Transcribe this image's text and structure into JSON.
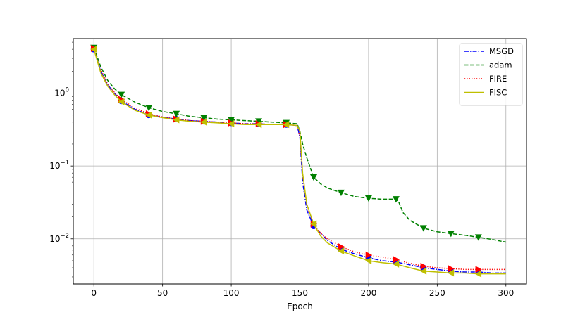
{
  "chart_data": {
    "type": "line",
    "xlabel": "Epoch",
    "ylabel": "",
    "xlim": [
      -15,
      315
    ],
    "ylim": [
      0.0024,
      5.6
    ],
    "yscale": "log",
    "grid": true,
    "legend_position": "top-right",
    "x_ticks": [
      0,
      50,
      100,
      150,
      200,
      250,
      300
    ],
    "x_tick_labels": [
      "0",
      "50",
      "100",
      "150",
      "200",
      "250",
      "300"
    ],
    "y_ticks": [
      1,
      0.1,
      0.01
    ],
    "y_tick_bases": [
      "10",
      "10",
      "10"
    ],
    "y_tick_exps": [
      "0",
      "−1",
      "−2"
    ],
    "series": [
      {
        "name": "MSGD",
        "color": "#0000ff",
        "dash": "dashdot",
        "marker": "circle",
        "points": [
          [
            0,
            4.0
          ],
          [
            5,
            2.0
          ],
          [
            10,
            1.3
          ],
          [
            15,
            1.0
          ],
          [
            20,
            0.78
          ],
          [
            30,
            0.6
          ],
          [
            40,
            0.5
          ],
          [
            50,
            0.47
          ],
          [
            60,
            0.44
          ],
          [
            70,
            0.42
          ],
          [
            80,
            0.41
          ],
          [
            90,
            0.4
          ],
          [
            100,
            0.39
          ],
          [
            110,
            0.38
          ],
          [
            120,
            0.38
          ],
          [
            130,
            0.37
          ],
          [
            140,
            0.37
          ],
          [
            148,
            0.36
          ],
          [
            150,
            0.25
          ],
          [
            152,
            0.06
          ],
          [
            155,
            0.025
          ],
          [
            160,
            0.015
          ],
          [
            165,
            0.012
          ],
          [
            170,
            0.0095
          ],
          [
            180,
            0.0072
          ],
          [
            190,
            0.0062
          ],
          [
            200,
            0.0055
          ],
          [
            210,
            0.005
          ],
          [
            220,
            0.0048
          ],
          [
            230,
            0.0044
          ],
          [
            240,
            0.004
          ],
          [
            250,
            0.0038
          ],
          [
            260,
            0.0036
          ],
          [
            270,
            0.0035
          ],
          [
            280,
            0.0035
          ],
          [
            290,
            0.0034
          ],
          [
            300,
            0.0034
          ]
        ],
        "markers": [
          [
            0,
            4.0
          ],
          [
            20,
            0.78
          ],
          [
            40,
            0.5
          ],
          [
            60,
            0.44
          ],
          [
            80,
            0.41
          ],
          [
            100,
            0.39
          ],
          [
            120,
            0.38
          ],
          [
            140,
            0.37
          ],
          [
            160,
            0.015
          ],
          [
            180,
            0.0072
          ],
          [
            200,
            0.0055
          ],
          [
            220,
            0.0048
          ],
          [
            240,
            0.004
          ],
          [
            260,
            0.0036
          ],
          [
            280,
            0.0035
          ]
        ]
      },
      {
        "name": "adam",
        "color": "#008000",
        "dash": "dashed",
        "marker": "triangle-down",
        "points": [
          [
            0,
            4.2
          ],
          [
            5,
            2.3
          ],
          [
            10,
            1.5
          ],
          [
            15,
            1.15
          ],
          [
            20,
            0.95
          ],
          [
            30,
            0.75
          ],
          [
            40,
            0.63
          ],
          [
            50,
            0.56
          ],
          [
            60,
            0.52
          ],
          [
            70,
            0.48
          ],
          [
            80,
            0.46
          ],
          [
            90,
            0.44
          ],
          [
            100,
            0.43
          ],
          [
            110,
            0.42
          ],
          [
            120,
            0.41
          ],
          [
            130,
            0.4
          ],
          [
            140,
            0.39
          ],
          [
            148,
            0.38
          ],
          [
            150,
            0.3
          ],
          [
            152,
            0.2
          ],
          [
            155,
            0.13
          ],
          [
            160,
            0.07
          ],
          [
            165,
            0.057
          ],
          [
            170,
            0.05
          ],
          [
            180,
            0.043
          ],
          [
            190,
            0.038
          ],
          [
            200,
            0.036
          ],
          [
            210,
            0.035
          ],
          [
            220,
            0.035
          ],
          [
            222,
            0.032
          ],
          [
            225,
            0.023
          ],
          [
            230,
            0.018
          ],
          [
            240,
            0.014
          ],
          [
            250,
            0.0125
          ],
          [
            260,
            0.0118
          ],
          [
            270,
            0.0112
          ],
          [
            280,
            0.0105
          ],
          [
            290,
            0.0098
          ],
          [
            300,
            0.009
          ]
        ],
        "markers": [
          [
            0,
            4.2
          ],
          [
            20,
            0.95
          ],
          [
            40,
            0.63
          ],
          [
            60,
            0.52
          ],
          [
            80,
            0.46
          ],
          [
            100,
            0.43
          ],
          [
            120,
            0.41
          ],
          [
            140,
            0.39
          ],
          [
            160,
            0.07
          ],
          [
            180,
            0.043
          ],
          [
            200,
            0.036
          ],
          [
            220,
            0.035
          ],
          [
            240,
            0.014
          ],
          [
            260,
            0.0118
          ],
          [
            280,
            0.0105
          ]
        ]
      },
      {
        "name": "FIRE",
        "color": "#ff0000",
        "dash": "dotted",
        "marker": "triangle-right",
        "points": [
          [
            0,
            4.1
          ],
          [
            5,
            2.1
          ],
          [
            10,
            1.35
          ],
          [
            15,
            1.02
          ],
          [
            20,
            0.82
          ],
          [
            30,
            0.62
          ],
          [
            40,
            0.52
          ],
          [
            50,
            0.47
          ],
          [
            60,
            0.44
          ],
          [
            70,
            0.42
          ],
          [
            80,
            0.41
          ],
          [
            90,
            0.4
          ],
          [
            100,
            0.39
          ],
          [
            110,
            0.38
          ],
          [
            120,
            0.38
          ],
          [
            130,
            0.37
          ],
          [
            140,
            0.37
          ],
          [
            148,
            0.36
          ],
          [
            150,
            0.25
          ],
          [
            152,
            0.07
          ],
          [
            155,
            0.028
          ],
          [
            160,
            0.016
          ],
          [
            165,
            0.012
          ],
          [
            170,
            0.01
          ],
          [
            180,
            0.0078
          ],
          [
            190,
            0.0066
          ],
          [
            200,
            0.006
          ],
          [
            210,
            0.0056
          ],
          [
            220,
            0.0052
          ],
          [
            230,
            0.0046
          ],
          [
            240,
            0.0042
          ],
          [
            250,
            0.004
          ],
          [
            260,
            0.0039
          ],
          [
            270,
            0.0038
          ],
          [
            280,
            0.0038
          ],
          [
            290,
            0.0038
          ],
          [
            300,
            0.0038
          ]
        ],
        "markers": [
          [
            0,
            4.1
          ],
          [
            20,
            0.82
          ],
          [
            40,
            0.52
          ],
          [
            60,
            0.44
          ],
          [
            80,
            0.41
          ],
          [
            100,
            0.39
          ],
          [
            120,
            0.38
          ],
          [
            140,
            0.37
          ],
          [
            160,
            0.016
          ],
          [
            180,
            0.0078
          ],
          [
            200,
            0.006
          ],
          [
            220,
            0.0052
          ],
          [
            240,
            0.0042
          ],
          [
            260,
            0.0039
          ],
          [
            280,
            0.0038
          ]
        ]
      },
      {
        "name": "FISC",
        "color": "#bfbf00",
        "dash": "solid",
        "marker": "triangle-left",
        "points": [
          [
            0,
            4.0
          ],
          [
            5,
            1.9
          ],
          [
            10,
            1.25
          ],
          [
            15,
            0.95
          ],
          [
            20,
            0.76
          ],
          [
            30,
            0.58
          ],
          [
            40,
            0.5
          ],
          [
            50,
            0.46
          ],
          [
            60,
            0.43
          ],
          [
            70,
            0.41
          ],
          [
            80,
            0.4
          ],
          [
            90,
            0.39
          ],
          [
            100,
            0.38
          ],
          [
            110,
            0.37
          ],
          [
            120,
            0.37
          ],
          [
            130,
            0.37
          ],
          [
            140,
            0.37
          ],
          [
            148,
            0.36
          ],
          [
            150,
            0.3
          ],
          [
            152,
            0.08
          ],
          [
            155,
            0.03
          ],
          [
            160,
            0.016
          ],
          [
            165,
            0.011
          ],
          [
            170,
            0.0088
          ],
          [
            180,
            0.0068
          ],
          [
            190,
            0.0058
          ],
          [
            200,
            0.005
          ],
          [
            210,
            0.0047
          ],
          [
            220,
            0.0045
          ],
          [
            230,
            0.004
          ],
          [
            240,
            0.0036
          ],
          [
            250,
            0.0035
          ],
          [
            260,
            0.0034
          ],
          [
            270,
            0.0034
          ],
          [
            280,
            0.0033
          ],
          [
            290,
            0.0033
          ],
          [
            300,
            0.0033
          ]
        ],
        "markers": [
          [
            0,
            4.0
          ],
          [
            20,
            0.76
          ],
          [
            40,
            0.5
          ],
          [
            60,
            0.43
          ],
          [
            80,
            0.4
          ],
          [
            100,
            0.38
          ],
          [
            120,
            0.37
          ],
          [
            140,
            0.37
          ],
          [
            160,
            0.016
          ],
          [
            180,
            0.0068
          ],
          [
            200,
            0.005
          ],
          [
            220,
            0.0045
          ],
          [
            240,
            0.0036
          ],
          [
            260,
            0.0034
          ],
          [
            280,
            0.0033
          ]
        ]
      }
    ]
  }
}
